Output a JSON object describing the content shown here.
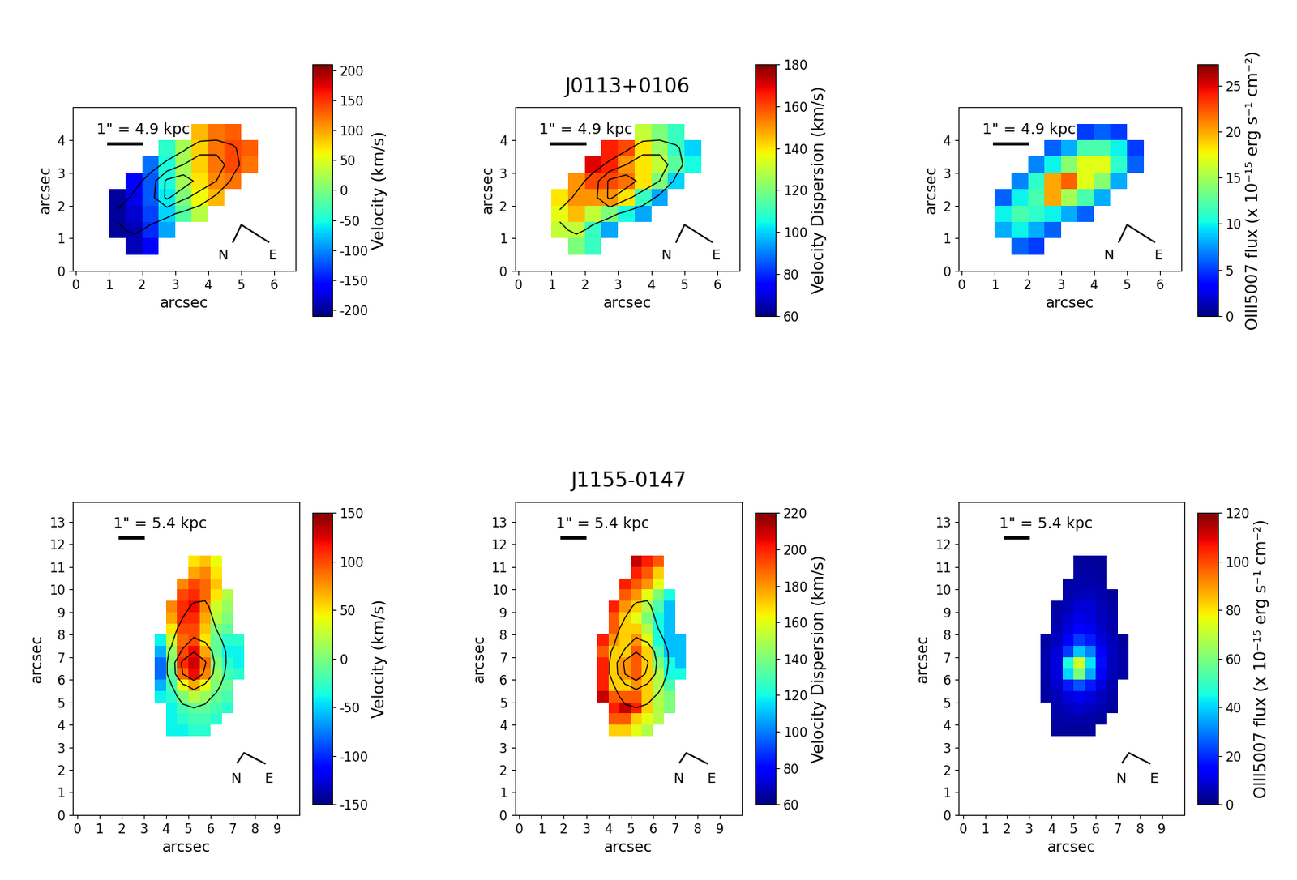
{
  "chart_data": [
    {
      "type": "heatmap",
      "xlabel": "arcsec",
      "ylabel": "arcsec",
      "xlim": [
        -0.1,
        6.65
      ],
      "ylim": [
        0,
        5.0
      ],
      "xticks": [
        0,
        1,
        2,
        3,
        4,
        5,
        6
      ],
      "yticks": [
        0,
        1,
        2,
        3,
        4
      ],
      "scale_label": "1\" = 4.9 kpc",
      "compass": [
        "N",
        "E"
      ],
      "x_edges": [
        1.0,
        1.5,
        2.0,
        2.5,
        3.0,
        3.5,
        4.0,
        4.5,
        5.0,
        5.5
      ],
      "y_edges": [
        0.5,
        1.0,
        1.5,
        2.0,
        2.5,
        3.0,
        3.5,
        4.0,
        4.5
      ],
      "cells": [
        [
          null,
          -190,
          -160,
          null,
          null,
          null,
          null,
          null,
          null
        ],
        [
          -200,
          -190,
          -140,
          -90,
          null,
          null,
          null,
          null,
          null
        ],
        [
          -200,
          -180,
          -130,
          -70,
          -20,
          30,
          null,
          null,
          null
        ],
        [
          -200,
          -170,
          -120,
          -60,
          0,
          60,
          90,
          null,
          null
        ],
        [
          null,
          -160,
          -120,
          -50,
          20,
          70,
          110,
          120,
          null
        ],
        [
          null,
          null,
          -110,
          -50,
          20,
          80,
          120,
          140,
          120
        ],
        [
          null,
          null,
          null,
          -40,
          20,
          80,
          120,
          140,
          130
        ],
        [
          null,
          null,
          null,
          null,
          null,
          90,
          120,
          130,
          null
        ]
      ],
      "contour_levels": [
        9,
        14,
        19
      ],
      "colorbar": {
        "label": "Velocity (km/s)",
        "range": [
          -210,
          210
        ],
        "ticks": [
          -200,
          -150,
          -100,
          -50,
          0,
          50,
          100,
          150,
          200
        ]
      }
    },
    {
      "type": "heatmap",
      "title": "J0113+0106",
      "xlabel": "arcsec",
      "ylabel": "arcsec",
      "xlim": [
        -0.1,
        6.65
      ],
      "ylim": [
        0,
        5.0
      ],
      "xticks": [
        0,
        1,
        2,
        3,
        4,
        5,
        6
      ],
      "yticks": [
        0,
        1,
        2,
        3,
        4
      ],
      "scale_label": "1\" = 4.9 kpc",
      "compass": [
        "N",
        "E"
      ],
      "x_edges": [
        1.0,
        1.5,
        2.0,
        2.5,
        3.0,
        3.5,
        4.0,
        4.5,
        5.0,
        5.5
      ],
      "y_edges": [
        0.5,
        1.0,
        1.5,
        2.0,
        2.5,
        3.0,
        3.5,
        4.0,
        4.5
      ],
      "cells": [
        [
          null,
          120,
          110,
          null,
          null,
          null,
          null,
          null,
          null
        ],
        [
          130,
          130,
          110,
          95,
          null,
          null,
          null,
          null,
          null
        ],
        [
          135,
          145,
          130,
          120,
          105,
          95,
          null,
          null,
          null
        ],
        [
          140,
          150,
          150,
          150,
          140,
          110,
          95,
          null,
          null
        ],
        [
          null,
          150,
          160,
          160,
          155,
          140,
          120,
          100,
          null
        ],
        [
          null,
          null,
          170,
          165,
          150,
          140,
          130,
          115,
          105
        ],
        [
          null,
          null,
          null,
          165,
          160,
          140,
          125,
          110,
          100
        ],
        [
          null,
          null,
          null,
          null,
          null,
          130,
          120,
          110,
          null
        ]
      ],
      "contour_levels": [
        9,
        14,
        19
      ],
      "colorbar": {
        "label": "Velocity Dispersion (km/s)",
        "range": [
          60,
          180
        ],
        "ticks": [
          60,
          80,
          100,
          120,
          140,
          160,
          180
        ]
      }
    },
    {
      "type": "heatmap",
      "xlabel": "arcsec",
      "ylabel": "arcsec",
      "xlim": [
        -0.1,
        6.65
      ],
      "ylim": [
        0,
        5.0
      ],
      "xticks": [
        0,
        1,
        2,
        3,
        4,
        5,
        6
      ],
      "yticks": [
        0,
        1,
        2,
        3,
        4
      ],
      "scale_label": "1\" = 4.9 kpc",
      "compass": [
        "N",
        "E"
      ],
      "x_edges": [
        1.0,
        1.5,
        2.0,
        2.5,
        3.0,
        3.5,
        4.0,
        4.5,
        5.0,
        5.5
      ],
      "y_edges": [
        0.5,
        1.0,
        1.5,
        2.0,
        2.5,
        3.0,
        3.5,
        4.0,
        4.5
      ],
      "cells": [
        [
          null,
          6,
          5,
          null,
          null,
          null,
          null,
          null,
          null
        ],
        [
          8,
          10,
          8,
          6,
          null,
          null,
          null,
          null,
          null
        ],
        [
          10,
          12,
          11,
          10,
          8,
          6,
          null,
          null,
          null
        ],
        [
          6,
          10,
          12,
          20,
          15,
          12,
          8,
          null,
          null
        ],
        [
          null,
          7,
          11,
          20,
          22,
          17,
          14,
          8,
          null
        ],
        [
          null,
          null,
          7,
          10,
          14,
          17,
          17,
          11,
          6
        ],
        [
          null,
          null,
          null,
          6,
          8,
          12,
          12,
          10,
          5
        ],
        [
          null,
          null,
          null,
          null,
          null,
          5,
          6,
          5,
          null
        ]
      ],
      "colorbar": {
        "label": "OIII5007 flux (x 10⁻¹⁵ erg s⁻¹ cm⁻²)",
        "range": [
          0,
          27.3
        ],
        "ticks": [
          0,
          5,
          10,
          15,
          20,
          25
        ]
      }
    },
    {
      "type": "heatmap",
      "xlabel": "arcsec",
      "ylabel": "arcsec",
      "xlim": [
        -0.2,
        10.0
      ],
      "ylim": [
        0,
        13.9
      ],
      "xticks": [
        0,
        1,
        2,
        3,
        4,
        5,
        6,
        7,
        8,
        9
      ],
      "yticks": [
        0,
        1,
        2,
        3,
        4,
        5,
        6,
        7,
        8,
        9,
        10,
        11,
        12,
        13
      ],
      "scale_label": "1\" = 5.4 kpc",
      "compass": [
        "N",
        "E"
      ],
      "x_edges": [
        3.5,
        4.0,
        4.5,
        5.0,
        5.5,
        6.0,
        6.5,
        7.0,
        7.5
      ],
      "y_edges": [
        3.5,
        4.0,
        4.5,
        5.0,
        5.5,
        6.0,
        6.5,
        7.0,
        7.5,
        8.0,
        8.5,
        9.0,
        9.5,
        10.0,
        10.5,
        11.0,
        11.5
      ],
      "cells": [
        [
          null,
          -40,
          -40,
          -30,
          -30,
          null,
          null,
          null
        ],
        [
          null,
          -40,
          -30,
          -20,
          -20,
          -30,
          null,
          null
        ],
        [
          null,
          -40,
          -20,
          -10,
          -10,
          -20,
          -30,
          null
        ],
        [
          -40,
          -30,
          0,
          20,
          10,
          -10,
          -20,
          null
        ],
        [
          -60,
          -20,
          40,
          70,
          40,
          0,
          -10,
          null
        ],
        [
          -80,
          -10,
          90,
          120,
          80,
          10,
          -20,
          -30
        ],
        [
          -80,
          0,
          110,
          130,
          90,
          0,
          -30,
          -40
        ],
        [
          -60,
          10,
          100,
          120,
          70,
          -10,
          -40,
          -40
        ],
        [
          -40,
          30,
          90,
          100,
          50,
          -10,
          -30,
          -30
        ],
        [
          null,
          50,
          100,
          100,
          60,
          0,
          -10,
          null
        ],
        [
          null,
          70,
          110,
          110,
          70,
          20,
          0,
          null
        ],
        [
          null,
          80,
          110,
          120,
          80,
          30,
          10,
          null
        ],
        [
          null,
          null,
          100,
          110,
          90,
          50,
          20,
          null
        ],
        [
          null,
          null,
          80,
          100,
          90,
          60,
          null,
          null
        ],
        [
          null,
          null,
          null,
          70,
          80,
          50,
          null,
          null
        ],
        [
          null,
          null,
          null,
          50,
          60,
          40,
          null,
          null
        ]
      ],
      "contour_levels": [
        8,
        20,
        40
      ],
      "colorbar": {
        "label": "Velocity (km/s)",
        "range": [
          -150,
          150
        ],
        "ticks": [
          -150,
          -100,
          -50,
          0,
          50,
          100,
          150
        ]
      }
    },
    {
      "type": "heatmap",
      "title": "J1155-0147",
      "xlabel": "arcsec",
      "ylabel": "arcsec",
      "xlim": [
        -0.2,
        10.0
      ],
      "ylim": [
        0,
        13.9
      ],
      "xticks": [
        0,
        1,
        2,
        3,
        4,
        5,
        6,
        7,
        8,
        9
      ],
      "yticks": [
        0,
        1,
        2,
        3,
        4,
        5,
        6,
        7,
        8,
        9,
        10,
        11,
        12,
        13
      ],
      "scale_label": "1\" = 5.4 kpc",
      "compass": [
        "N",
        "E"
      ],
      "x_edges": [
        3.5,
        4.0,
        4.5,
        5.0,
        5.5,
        6.0,
        6.5,
        7.0,
        7.5
      ],
      "y_edges": [
        3.5,
        4.0,
        4.5,
        5.0,
        5.5,
        6.0,
        6.5,
        7.0,
        7.5,
        8.0,
        8.5,
        9.0,
        9.5,
        10.0,
        10.5,
        11.0,
        11.5
      ],
      "cells": [
        [
          null,
          170,
          170,
          160,
          150,
          null,
          null,
          null
        ],
        [
          null,
          190,
          190,
          170,
          160,
          150,
          null,
          null
        ],
        [
          null,
          200,
          210,
          200,
          170,
          150,
          140,
          null
        ],
        [
          210,
          190,
          190,
          190,
          170,
          150,
          140,
          null
        ],
        [
          200,
          170,
          170,
          180,
          170,
          150,
          130,
          null
        ],
        [
          200,
          170,
          180,
          190,
          170,
          150,
          120,
          120
        ],
        [
          200,
          170,
          180,
          190,
          170,
          140,
          120,
          110
        ],
        [
          190,
          170,
          170,
          190,
          170,
          130,
          110,
          110
        ],
        [
          200,
          180,
          170,
          180,
          160,
          120,
          110,
          110
        ],
        [
          null,
          190,
          170,
          170,
          150,
          120,
          110,
          null
        ],
        [
          null,
          190,
          170,
          160,
          140,
          120,
          110,
          null
        ],
        [
          null,
          200,
          180,
          170,
          150,
          130,
          110,
          null
        ],
        [
          null,
          null,
          190,
          180,
          160,
          140,
          120,
          null
        ],
        [
          null,
          null,
          200,
          190,
          180,
          160,
          null,
          null
        ],
        [
          null,
          null,
          null,
          200,
          190,
          170,
          null,
          null
        ],
        [
          null,
          null,
          null,
          210,
          200,
          190,
          null,
          null
        ]
      ],
      "contour_levels": [
        8,
        20,
        40
      ],
      "colorbar": {
        "label": "Velocity Dispersion (km/s)",
        "range": [
          60,
          220
        ],
        "ticks": [
          60,
          80,
          100,
          120,
          140,
          160,
          180,
          200,
          220
        ]
      }
    },
    {
      "type": "heatmap",
      "xlabel": "arcsec",
      "ylabel": "arcsec",
      "xlim": [
        -0.2,
        10.0
      ],
      "ylim": [
        0,
        13.9
      ],
      "xticks": [
        0,
        1,
        2,
        3,
        4,
        5,
        6,
        7,
        8,
        9
      ],
      "yticks": [
        0,
        1,
        2,
        3,
        4,
        5,
        6,
        7,
        8,
        9,
        10,
        11,
        12,
        13
      ],
      "scale_label": "1\" = 5.4 kpc",
      "compass": [
        "N",
        "E"
      ],
      "x_edges": [
        3.5,
        4.0,
        4.5,
        5.0,
        5.5,
        6.0,
        6.5,
        7.0,
        7.5
      ],
      "y_edges": [
        3.5,
        4.0,
        4.5,
        5.0,
        5.5,
        6.0,
        6.5,
        7.0,
        7.5,
        8.0,
        8.5,
        9.0,
        9.5,
        10.0,
        10.5,
        11.0,
        11.5
      ],
      "cells": [
        [
          null,
          3,
          3,
          3,
          3,
          null,
          null,
          null
        ],
        [
          null,
          4,
          5,
          5,
          4,
          3,
          null,
          null
        ],
        [
          null,
          5,
          7,
          8,
          7,
          5,
          3,
          null
        ],
        [
          4,
          6,
          10,
          12,
          10,
          7,
          4,
          null
        ],
        [
          4,
          8,
          18,
          25,
          18,
          10,
          5,
          null
        ],
        [
          5,
          10,
          40,
          60,
          35,
          14,
          6,
          4
        ],
        [
          5,
          10,
          45,
          72,
          42,
          16,
          7,
          4
        ],
        [
          5,
          9,
          22,
          38,
          30,
          14,
          7,
          4
        ],
        [
          4,
          7,
          14,
          22,
          18,
          10,
          6,
          3
        ],
        [
          null,
          6,
          10,
          14,
          12,
          8,
          5,
          null
        ],
        [
          null,
          5,
          8,
          11,
          10,
          7,
          5,
          null
        ],
        [
          null,
          4,
          6,
          9,
          9,
          6,
          4,
          null
        ],
        [
          null,
          null,
          5,
          6,
          7,
          5,
          3,
          null
        ],
        [
          null,
          null,
          4,
          5,
          5,
          4,
          null,
          null
        ],
        [
          null,
          null,
          null,
          4,
          4,
          3,
          null,
          null
        ],
        [
          null,
          null,
          null,
          3,
          3,
          3,
          null,
          null
        ]
      ],
      "colorbar": {
        "label": "OIII5007 flux (x 10⁻¹⁵ erg s⁻¹ cm⁻²)",
        "range": [
          0,
          120
        ],
        "ticks": [
          0,
          20,
          40,
          60,
          80,
          100,
          120
        ]
      }
    }
  ]
}
